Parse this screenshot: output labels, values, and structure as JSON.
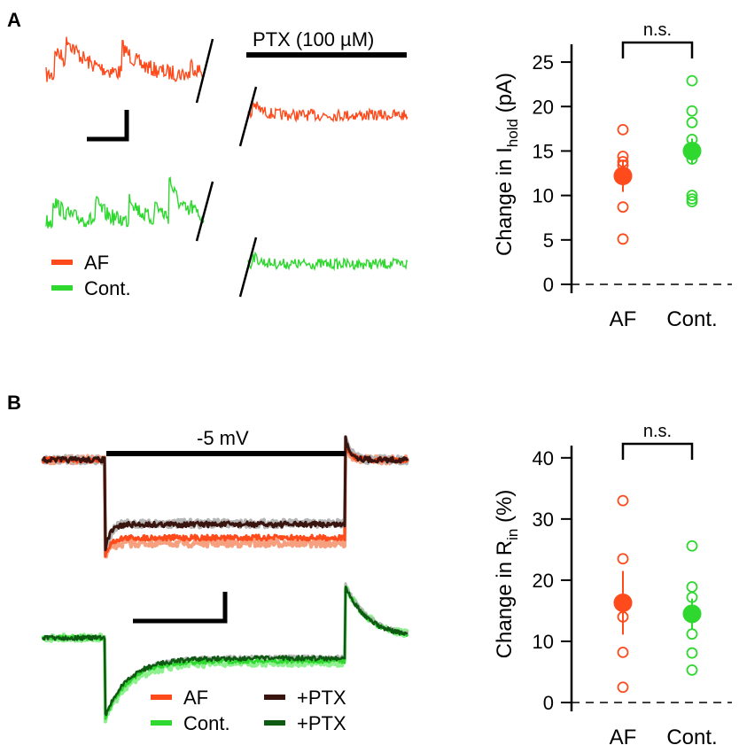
{
  "colors": {
    "af": "#ff4a1c",
    "af_light": "#f7a07f",
    "cont": "#2ed82e",
    "cont_light": "#8ef08e",
    "af_ptx": "#3a140e",
    "cont_ptx": "#0f5a12",
    "grey": "#b5b5b5",
    "axis": "#000000"
  },
  "panel_a": {
    "label": "A",
    "ptx_label": "PTX (100 µM)",
    "legend": [
      {
        "label": "AF",
        "color": "af"
      },
      {
        "label": "Cont."
      }
    ]
  },
  "panel_b": {
    "label": "B",
    "step_label": "-5 mV",
    "legend": [
      {
        "label": "AF"
      },
      {
        "label": "Cont."
      },
      {
        "label": "+PTX"
      },
      {
        "label": "+PTX"
      }
    ]
  },
  "chart_data": [
    {
      "type": "scatter",
      "title": "",
      "ylabel": "Change in I_hold (pA)",
      "ylabel_main": "Change in I",
      "ylabel_sub": "hold",
      "ylabel_tail": " (pA)",
      "categories": [
        "AF",
        "Cont."
      ],
      "ylim": [
        0,
        27
      ],
      "yticks": [
        "0",
        "5",
        "10",
        "15",
        "20",
        "25"
      ],
      "significance": "n.s.",
      "series": [
        {
          "name": "AF",
          "points": [
            17.4,
            14.4,
            13.8,
            13.4,
            8.7,
            5.1
          ],
          "mean": 12.2,
          "sem": 1.8
        },
        {
          "name": "Cont.",
          "points": [
            22.9,
            19.5,
            18.2,
            16.3,
            14.6,
            14.1,
            10.0,
            9.6,
            9.3
          ],
          "mean": 15.0,
          "sem": 1.4
        }
      ]
    },
    {
      "type": "scatter",
      "title": "",
      "ylabel": "Change in R_in (%)",
      "ylabel_main": "Change in R",
      "ylabel_sub": "in",
      "ylabel_tail": " (%)",
      "categories": [
        "AF",
        "Cont."
      ],
      "ylim": [
        0,
        42
      ],
      "yticks": [
        "0",
        "10",
        "20",
        "30",
        "40"
      ],
      "significance": "n.s.",
      "series": [
        {
          "name": "AF",
          "points": [
            33.0,
            23.5,
            14.0,
            8.2,
            2.5
          ],
          "mean": 16.3,
          "sem": 5.2
        },
        {
          "name": "Cont.",
          "points": [
            25.6,
            18.9,
            17.2,
            14.2,
            11.2,
            8.1,
            5.3
          ],
          "mean": 14.5,
          "sem": 2.5
        }
      ]
    }
  ]
}
